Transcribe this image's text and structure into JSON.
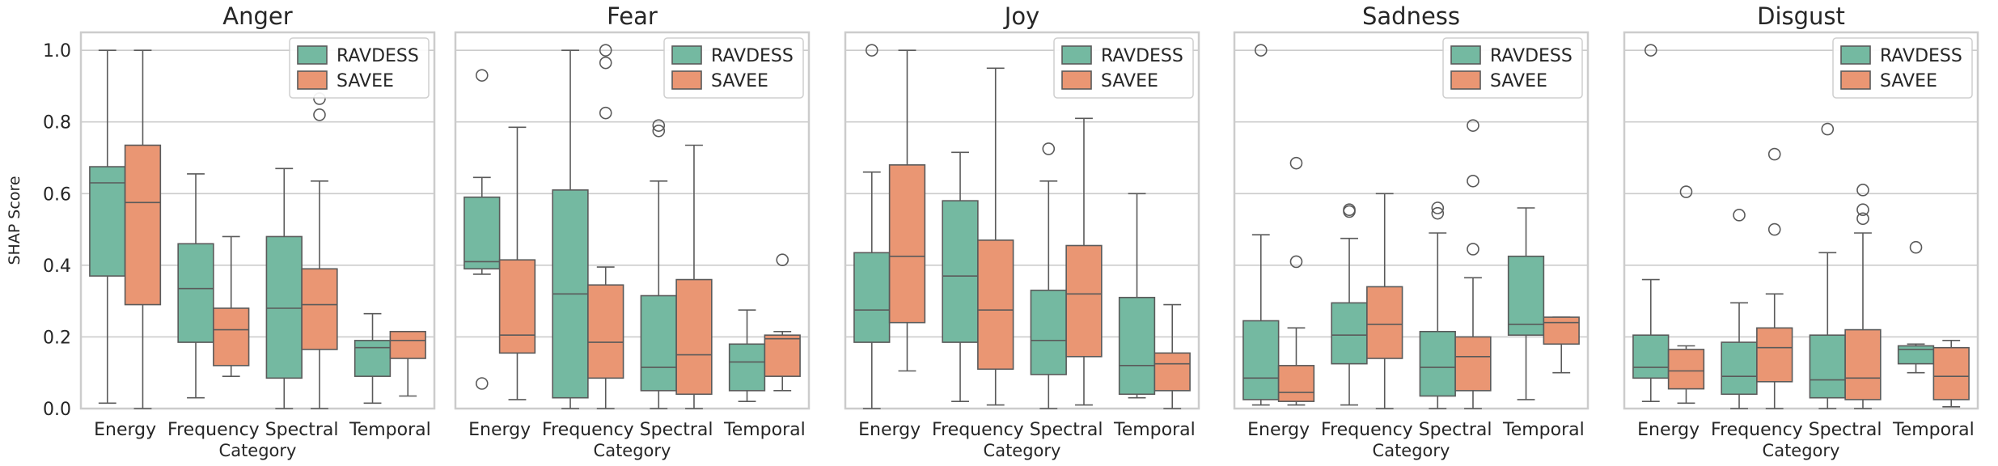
{
  "chart_data": [
    {
      "type": "box",
      "title": "Anger",
      "xlabel": "Category",
      "ylabel": "SHAP Score",
      "ylim": [
        0,
        1.05
      ],
      "yticks": [
        "0.0",
        "0.2",
        "0.4",
        "0.6",
        "0.8",
        "1.0"
      ],
      "categories": [
        "Energy",
        "Frequency",
        "Spectral",
        "Temporal"
      ],
      "legend": {
        "position": "top-right",
        "entries": [
          "RAVDESS",
          "SAVEE"
        ]
      },
      "series": [
        {
          "name": "RAVDESS",
          "boxes": [
            {
              "wlo": 0.015,
              "q1": 0.37,
              "med": 0.63,
              "q3": 0.675,
              "whi": 1.0,
              "fliers": []
            },
            {
              "wlo": 0.03,
              "q1": 0.185,
              "med": 0.335,
              "q3": 0.46,
              "whi": 0.655,
              "fliers": []
            },
            {
              "wlo": 0.0,
              "q1": 0.085,
              "med": 0.28,
              "q3": 0.48,
              "whi": 0.67,
              "fliers": []
            },
            {
              "wlo": 0.015,
              "q1": 0.09,
              "med": 0.17,
              "q3": 0.19,
              "whi": 0.265,
              "fliers": []
            }
          ]
        },
        {
          "name": "SAVEE",
          "boxes": [
            {
              "wlo": 0.0,
              "q1": 0.29,
              "med": 0.575,
              "q3": 0.735,
              "whi": 1.0,
              "fliers": []
            },
            {
              "wlo": 0.09,
              "q1": 0.12,
              "med": 0.22,
              "q3": 0.28,
              "whi": 0.48,
              "fliers": []
            },
            {
              "wlo": 0.0,
              "q1": 0.165,
              "med": 0.29,
              "q3": 0.39,
              "whi": 0.635,
              "fliers": [
                0.82,
                0.865
              ]
            },
            {
              "wlo": 0.035,
              "q1": 0.14,
              "med": 0.19,
              "q3": 0.215,
              "whi": 0.215,
              "fliers": []
            }
          ]
        }
      ]
    },
    {
      "type": "box",
      "title": "Fear",
      "xlabel": "Category",
      "ylabel": "",
      "ylim": [
        0,
        1.05
      ],
      "categories": [
        "Energy",
        "Frequency",
        "Spectral",
        "Temporal"
      ],
      "legend": {
        "position": "top-right",
        "entries": [
          "RAVDESS",
          "SAVEE"
        ]
      },
      "series": [
        {
          "name": "RAVDESS",
          "boxes": [
            {
              "wlo": 0.375,
              "q1": 0.39,
              "med": 0.41,
              "q3": 0.59,
              "whi": 0.645,
              "fliers": [
                0.07,
                0.93
              ]
            },
            {
              "wlo": 0.0,
              "q1": 0.03,
              "med": 0.32,
              "q3": 0.61,
              "whi": 1.0,
              "fliers": []
            },
            {
              "wlo": 0.0,
              "q1": 0.05,
              "med": 0.115,
              "q3": 0.315,
              "whi": 0.635,
              "fliers": [
                0.775,
                0.79
              ]
            },
            {
              "wlo": 0.02,
              "q1": 0.05,
              "med": 0.13,
              "q3": 0.18,
              "whi": 0.275,
              "fliers": []
            }
          ]
        },
        {
          "name": "SAVEE",
          "boxes": [
            {
              "wlo": 0.025,
              "q1": 0.155,
              "med": 0.205,
              "q3": 0.415,
              "whi": 0.785,
              "fliers": []
            },
            {
              "wlo": 0.0,
              "q1": 0.085,
              "med": 0.185,
              "q3": 0.345,
              "whi": 0.395,
              "fliers": [
                0.825,
                0.965,
                1.0
              ]
            },
            {
              "wlo": 0.0,
              "q1": 0.04,
              "med": 0.15,
              "q3": 0.36,
              "whi": 0.735,
              "fliers": []
            },
            {
              "wlo": 0.05,
              "q1": 0.09,
              "med": 0.195,
              "q3": 0.205,
              "whi": 0.215,
              "fliers": [
                0.415
              ]
            }
          ]
        }
      ]
    },
    {
      "type": "box",
      "title": "Joy",
      "xlabel": "Category",
      "ylabel": "",
      "ylim": [
        0,
        1.05
      ],
      "categories": [
        "Energy",
        "Frequency",
        "Spectral",
        "Temporal"
      ],
      "legend": {
        "position": "top-right",
        "entries": [
          "RAVDESS",
          "SAVEE"
        ]
      },
      "series": [
        {
          "name": "RAVDESS",
          "boxes": [
            {
              "wlo": 0.0,
              "q1": 0.185,
              "med": 0.275,
              "q3": 0.435,
              "whi": 0.66,
              "fliers": [
                1.0
              ]
            },
            {
              "wlo": 0.02,
              "q1": 0.185,
              "med": 0.37,
              "q3": 0.58,
              "whi": 0.715,
              "fliers": []
            },
            {
              "wlo": 0.0,
              "q1": 0.095,
              "med": 0.19,
              "q3": 0.33,
              "whi": 0.635,
              "fliers": [
                0.725
              ]
            },
            {
              "wlo": 0.03,
              "q1": 0.04,
              "med": 0.12,
              "q3": 0.31,
              "whi": 0.6,
              "fliers": []
            }
          ]
        },
        {
          "name": "SAVEE",
          "boxes": [
            {
              "wlo": 0.105,
              "q1": 0.24,
              "med": 0.425,
              "q3": 0.68,
              "whi": 1.0,
              "fliers": []
            },
            {
              "wlo": 0.01,
              "q1": 0.11,
              "med": 0.275,
              "q3": 0.47,
              "whi": 0.95,
              "fliers": []
            },
            {
              "wlo": 0.01,
              "q1": 0.145,
              "med": 0.32,
              "q3": 0.455,
              "whi": 0.81,
              "fliers": []
            },
            {
              "wlo": 0.0,
              "q1": 0.05,
              "med": 0.125,
              "q3": 0.155,
              "whi": 0.29,
              "fliers": []
            }
          ]
        }
      ]
    },
    {
      "type": "box",
      "title": "Sadness",
      "xlabel": "Category",
      "ylabel": "",
      "ylim": [
        0,
        1.05
      ],
      "categories": [
        "Energy",
        "Frequency",
        "Spectral",
        "Temporal"
      ],
      "legend": {
        "position": "top-right",
        "entries": [
          "RAVDESS",
          "SAVEE"
        ]
      },
      "series": [
        {
          "name": "RAVDESS",
          "boxes": [
            {
              "wlo": 0.01,
              "q1": 0.025,
              "med": 0.085,
              "q3": 0.245,
              "whi": 0.485,
              "fliers": [
                1.0
              ]
            },
            {
              "wlo": 0.01,
              "q1": 0.125,
              "med": 0.205,
              "q3": 0.295,
              "whi": 0.475,
              "fliers": [
                0.55,
                0.555
              ]
            },
            {
              "wlo": 0.0,
              "q1": 0.035,
              "med": 0.115,
              "q3": 0.215,
              "whi": 0.49,
              "fliers": [
                0.545,
                0.56
              ]
            },
            {
              "wlo": 0.025,
              "q1": 0.205,
              "med": 0.235,
              "q3": 0.425,
              "whi": 0.56,
              "fliers": []
            }
          ]
        },
        {
          "name": "SAVEE",
          "boxes": [
            {
              "wlo": 0.01,
              "q1": 0.02,
              "med": 0.045,
              "q3": 0.12,
              "whi": 0.225,
              "fliers": [
                0.41,
                0.685
              ]
            },
            {
              "wlo": 0.0,
              "q1": 0.14,
              "med": 0.235,
              "q3": 0.34,
              "whi": 0.6,
              "fliers": []
            },
            {
              "wlo": 0.0,
              "q1": 0.05,
              "med": 0.145,
              "q3": 0.2,
              "whi": 0.365,
              "fliers": [
                0.445,
                0.635,
                0.79
              ]
            },
            {
              "wlo": 0.1,
              "q1": 0.18,
              "med": 0.24,
              "q3": 0.255,
              "whi": 0.255,
              "fliers": []
            }
          ]
        }
      ]
    },
    {
      "type": "box",
      "title": "Disgust",
      "xlabel": "Category",
      "ylabel": "",
      "ylim": [
        0,
        1.05
      ],
      "categories": [
        "Energy",
        "Frequency",
        "Spectral",
        "Temporal"
      ],
      "legend": {
        "position": "top-right",
        "entries": [
          "RAVDESS",
          "SAVEE"
        ]
      },
      "series": [
        {
          "name": "RAVDESS",
          "boxes": [
            {
              "wlo": 0.02,
              "q1": 0.085,
              "med": 0.115,
              "q3": 0.205,
              "whi": 0.36,
              "fliers": [
                1.0
              ]
            },
            {
              "wlo": 0.0,
              "q1": 0.04,
              "med": 0.09,
              "q3": 0.185,
              "whi": 0.295,
              "fliers": [
                0.54
              ]
            },
            {
              "wlo": 0.0,
              "q1": 0.03,
              "med": 0.08,
              "q3": 0.205,
              "whi": 0.435,
              "fliers": [
                0.78
              ]
            },
            {
              "wlo": 0.1,
              "q1": 0.125,
              "med": 0.165,
              "q3": 0.175,
              "whi": 0.18,
              "fliers": [
                0.45
              ]
            }
          ]
        },
        {
          "name": "SAVEE",
          "boxes": [
            {
              "wlo": 0.015,
              "q1": 0.055,
              "med": 0.105,
              "q3": 0.165,
              "whi": 0.175,
              "fliers": [
                0.605
              ]
            },
            {
              "wlo": 0.0,
              "q1": 0.075,
              "med": 0.17,
              "q3": 0.225,
              "whi": 0.32,
              "fliers": [
                0.5,
                0.71
              ]
            },
            {
              "wlo": 0.0,
              "q1": 0.025,
              "med": 0.085,
              "q3": 0.22,
              "whi": 0.49,
              "fliers": [
                0.53,
                0.555,
                0.61
              ]
            },
            {
              "wlo": 0.005,
              "q1": 0.025,
              "med": 0.09,
              "q3": 0.17,
              "whi": 0.19,
              "fliers": []
            }
          ]
        }
      ]
    }
  ],
  "colors": {
    "RAVDESS": "#74b9a1",
    "SAVEE": "#ea9673"
  }
}
